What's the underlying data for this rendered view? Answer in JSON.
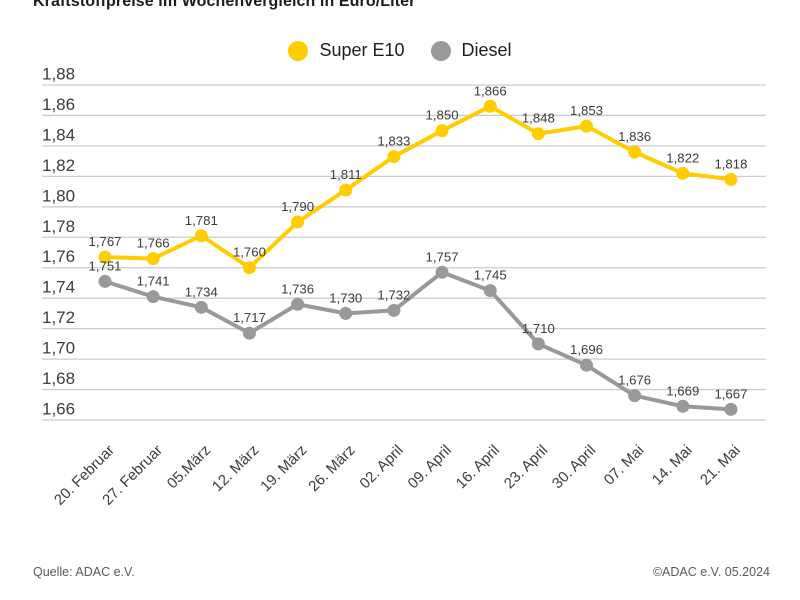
{
  "title": "Kraftstoffpreise im Wochenvergleich in Euro/Liter",
  "legend": {
    "items": [
      {
        "label": "Super E10",
        "color": "#FFCC00"
      },
      {
        "label": "Diesel",
        "color": "#999999"
      }
    ]
  },
  "footer": {
    "source": "Quelle: ADAC e.V.",
    "copyright": "©ADAC e.V. 05.2024"
  },
  "chart_data": {
    "type": "line",
    "title": "Kraftstoffpreise im Wochenvergleich in Euro/Liter",
    "categories": [
      "20. Februar",
      "27. Februar",
      "05.März",
      "12. März",
      "19. März",
      "26. März",
      "02. April",
      "09. April",
      "16. April",
      "23. April",
      "30. April",
      "07. Mai",
      "14. Mai",
      "21. Mai"
    ],
    "series": [
      {
        "name": "Super E10",
        "color": "#FFCC00",
        "values": [
          1.767,
          1.766,
          1.781,
          1.76,
          1.79,
          1.811,
          1.833,
          1.85,
          1.866,
          1.848,
          1.853,
          1.836,
          1.822,
          1.818
        ],
        "labels": [
          "1,767",
          "1,766",
          "1,781",
          "1,760",
          "1,790",
          "1,811",
          "1,833",
          "1,850",
          "1,866",
          "1,848",
          "1,853",
          "1,836",
          "1,822",
          "1,818"
        ]
      },
      {
        "name": "Diesel",
        "color": "#999999",
        "values": [
          1.751,
          1.741,
          1.734,
          1.717,
          1.736,
          1.73,
          1.732,
          1.757,
          1.745,
          1.71,
          1.696,
          1.676,
          1.669,
          1.667
        ],
        "labels": [
          "1,751",
          "1,741",
          "1,734",
          "1,717",
          "1,736",
          "1,730",
          "1,732",
          "1,757",
          "1,745",
          "1,710",
          "1,696",
          "1,676",
          "1,669",
          "1,667"
        ]
      }
    ],
    "xlabel": "",
    "ylabel": "Euro/Liter",
    "ylim": [
      1.66,
      1.88
    ],
    "y_tick_step": 0.02,
    "y_ticks": [
      "1,88",
      "1,86",
      "1,84",
      "1,82",
      "1,80",
      "1,78",
      "1,76",
      "1,74",
      "1,72",
      "1,70",
      "1,68",
      "1,66"
    ],
    "grid": true,
    "legend_position": "top-center",
    "marker": "circle",
    "colors": {
      "grid": "#cccccc",
      "tick_text": "#3c3c3c",
      "point_label_text": "#3c3c3c"
    }
  }
}
